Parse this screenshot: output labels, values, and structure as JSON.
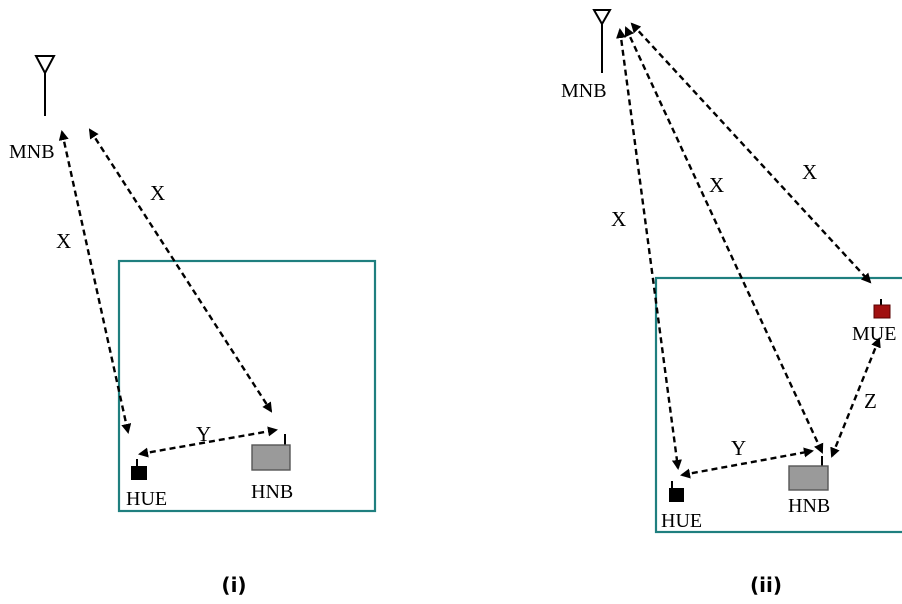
{
  "panels": [
    {
      "caption": "(i)",
      "nodes": {
        "macro_base_station": "MNB",
        "home_ue": "HUE",
        "home_base_station": "HNB"
      },
      "links": [
        {
          "from": "MNB",
          "to": "HUE",
          "label": "X"
        },
        {
          "from": "MNB",
          "to": "HNB",
          "label": "X"
        },
        {
          "from": "HUE",
          "to": "HNB",
          "label": "Y"
        }
      ]
    },
    {
      "caption": "(ii)",
      "nodes": {
        "macro_base_station": "MNB",
        "home_ue": "HUE",
        "home_base_station": "HNB",
        "macro_ue": "MUE"
      },
      "links": [
        {
          "from": "MNB",
          "to": "HUE",
          "label": "X"
        },
        {
          "from": "MNB",
          "to": "HNB",
          "label": "X"
        },
        {
          "from": "MNB",
          "to": "MUE",
          "label": "X"
        },
        {
          "from": "HUE",
          "to": "HNB",
          "label": "Y"
        },
        {
          "from": "HNB",
          "to": "MUE",
          "label": "Z"
        }
      ]
    }
  ],
  "colors": {
    "region_border": "#1f7f7f",
    "hnb_fill": "#9a9a9a",
    "hue_fill": "#000000",
    "mue_fill": "#a01010"
  }
}
